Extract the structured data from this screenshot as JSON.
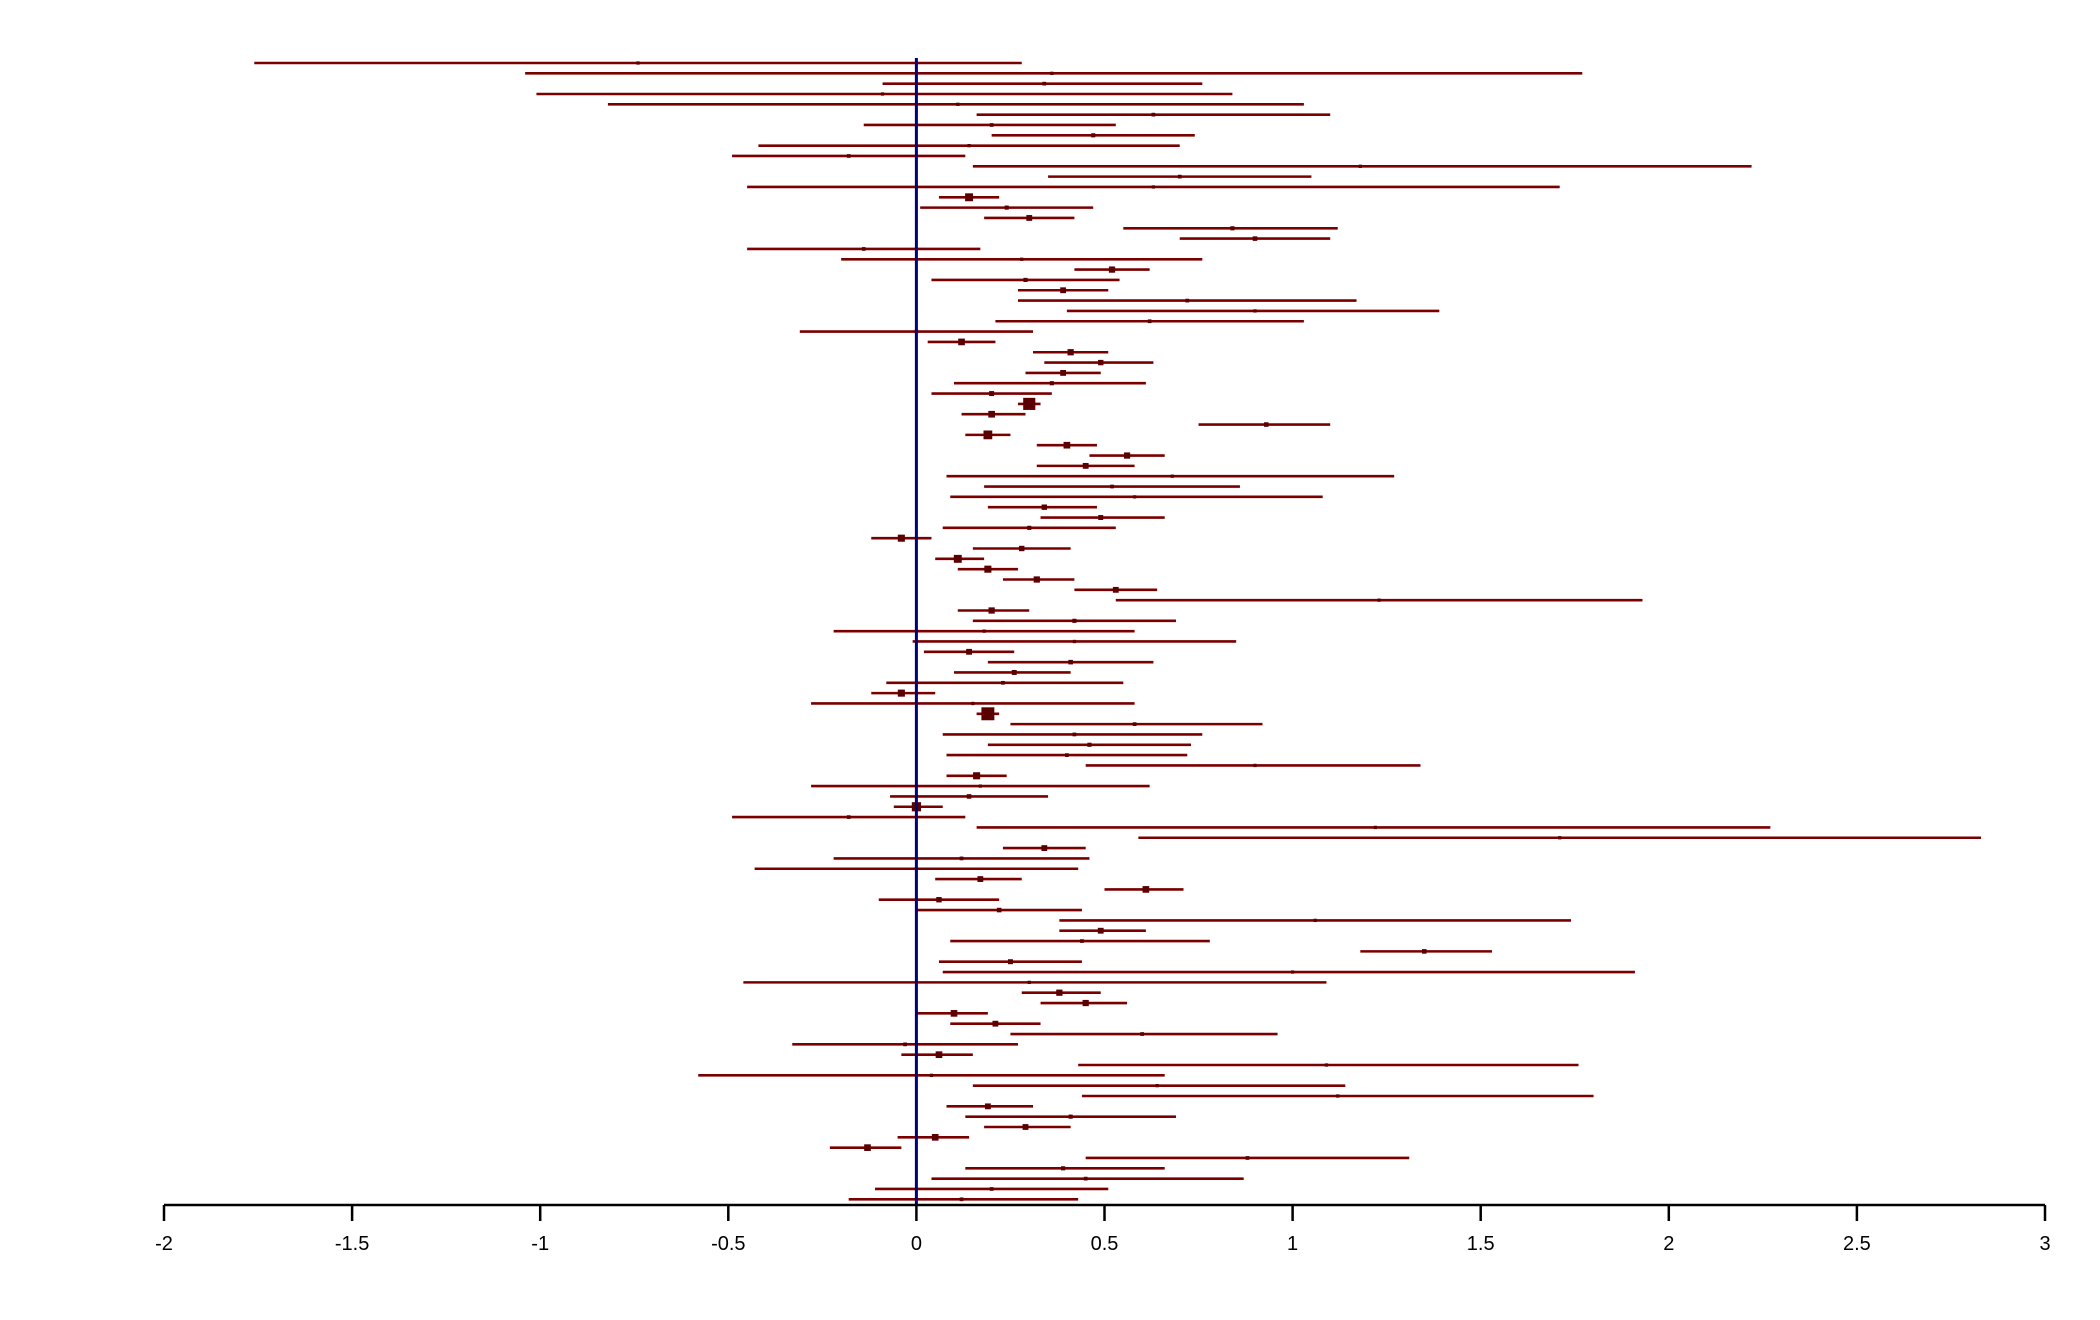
{
  "chart_data": {
    "type": "forest",
    "xlim": [
      -2,
      3
    ],
    "xticks": [
      -2,
      -1.5,
      -1,
      -0.5,
      0,
      0.5,
      1,
      1.5,
      2,
      2.5,
      3
    ],
    "xtick_labels": [
      "-2",
      "-1.5",
      "-1",
      "-0.5",
      "0",
      "0.5",
      "1",
      "1.5",
      "2",
      "2.5",
      "3"
    ],
    "reference_line": 0,
    "grid": false,
    "colors": {
      "interval": "#7a0000",
      "marker": "#5a0000",
      "reference": "#00007a",
      "axis": "#000000"
    },
    "rows": [
      {
        "est": -0.74,
        "lo": -1.76,
        "hi": 0.28,
        "w": 0.5
      },
      {
        "est": 0.36,
        "lo": -1.04,
        "hi": 1.77,
        "w": 0.5
      },
      {
        "est": 0.34,
        "lo": -0.09,
        "hi": 0.76,
        "w": 0.6
      },
      {
        "est": -0.09,
        "lo": -1.01,
        "hi": 0.84,
        "w": 0.5
      },
      {
        "est": 0.11,
        "lo": -0.82,
        "hi": 1.03,
        "w": 0.5
      },
      {
        "est": 0.63,
        "lo": 0.16,
        "hi": 1.1,
        "w": 0.6
      },
      {
        "est": 0.2,
        "lo": -0.14,
        "hi": 0.53,
        "w": 0.6
      },
      {
        "est": 0.47,
        "lo": 0.2,
        "hi": 0.74,
        "w": 0.7
      },
      {
        "est": 0.14,
        "lo": -0.42,
        "hi": 0.7,
        "w": 0.5
      },
      {
        "est": -0.18,
        "lo": -0.49,
        "hi": 0.13,
        "w": 0.6
      },
      {
        "est": 1.18,
        "lo": 0.15,
        "hi": 2.22,
        "w": 0.5
      },
      {
        "est": 0.7,
        "lo": 0.35,
        "hi": 1.05,
        "w": 0.6
      },
      {
        "est": 0.63,
        "lo": -0.45,
        "hi": 1.71,
        "w": 0.5
      },
      {
        "est": 0.14,
        "lo": 0.06,
        "hi": 0.22,
        "w": 1.6
      },
      {
        "est": 0.24,
        "lo": 0.01,
        "hi": 0.47,
        "w": 0.7
      },
      {
        "est": 0.3,
        "lo": 0.18,
        "hi": 0.42,
        "w": 1.1
      },
      {
        "est": 0.84,
        "lo": 0.55,
        "hi": 1.12,
        "w": 0.7
      },
      {
        "est": 0.9,
        "lo": 0.7,
        "hi": 1.1,
        "w": 0.8
      },
      {
        "est": -0.14,
        "lo": -0.45,
        "hi": 0.17,
        "w": 0.6
      },
      {
        "est": 0.28,
        "lo": -0.2,
        "hi": 0.76,
        "w": 0.5
      },
      {
        "est": 0.52,
        "lo": 0.42,
        "hi": 0.62,
        "w": 1.2
      },
      {
        "est": 0.29,
        "lo": 0.04,
        "hi": 0.54,
        "w": 0.7
      },
      {
        "est": 0.39,
        "lo": 0.27,
        "hi": 0.51,
        "w": 1.1
      },
      {
        "est": 0.72,
        "lo": 0.27,
        "hi": 1.17,
        "w": 0.6
      },
      {
        "est": 0.9,
        "lo": 0.4,
        "hi": 1.39,
        "w": 0.5
      },
      {
        "est": 0.62,
        "lo": 0.21,
        "hi": 1.03,
        "w": 0.6
      },
      {
        "est": 0.0,
        "lo": -0.31,
        "hi": 0.31,
        "w": 0.6
      },
      {
        "est": 0.12,
        "lo": 0.03,
        "hi": 0.21,
        "w": 1.3
      },
      {
        "est": 0.41,
        "lo": 0.31,
        "hi": 0.51,
        "w": 1.2
      },
      {
        "est": 0.49,
        "lo": 0.34,
        "hi": 0.63,
        "w": 1.0
      },
      {
        "est": 0.39,
        "lo": 0.29,
        "hi": 0.49,
        "w": 1.1
      },
      {
        "est": 0.36,
        "lo": 0.1,
        "hi": 0.61,
        "w": 0.7
      },
      {
        "est": 0.2,
        "lo": 0.04,
        "hi": 0.36,
        "w": 0.9
      },
      {
        "est": 0.3,
        "lo": 0.27,
        "hi": 0.33,
        "w": 2.6
      },
      {
        "est": 0.2,
        "lo": 0.12,
        "hi": 0.29,
        "w": 1.3
      },
      {
        "est": 0.93,
        "lo": 0.75,
        "hi": 1.1,
        "w": 0.8
      },
      {
        "est": 0.19,
        "lo": 0.13,
        "hi": 0.25,
        "w": 1.8
      },
      {
        "est": 0.4,
        "lo": 0.32,
        "hi": 0.48,
        "w": 1.3
      },
      {
        "est": 0.56,
        "lo": 0.46,
        "hi": 0.66,
        "w": 1.2
      },
      {
        "est": 0.45,
        "lo": 0.32,
        "hi": 0.58,
        "w": 1.1
      },
      {
        "est": 0.68,
        "lo": 0.08,
        "hi": 1.27,
        "w": 0.5
      },
      {
        "est": 0.52,
        "lo": 0.18,
        "hi": 0.86,
        "w": 0.6
      },
      {
        "est": 0.58,
        "lo": 0.09,
        "hi": 1.08,
        "w": 0.5
      },
      {
        "est": 0.34,
        "lo": 0.19,
        "hi": 0.48,
        "w": 1.0
      },
      {
        "est": 0.49,
        "lo": 0.33,
        "hi": 0.66,
        "w": 0.9
      },
      {
        "est": 0.3,
        "lo": 0.07,
        "hi": 0.53,
        "w": 0.7
      },
      {
        "est": -0.04,
        "lo": -0.12,
        "hi": 0.04,
        "w": 1.4
      },
      {
        "est": 0.28,
        "lo": 0.15,
        "hi": 0.41,
        "w": 1.0
      },
      {
        "est": 0.11,
        "lo": 0.05,
        "hi": 0.18,
        "w": 1.6
      },
      {
        "est": 0.19,
        "lo": 0.11,
        "hi": 0.27,
        "w": 1.4
      },
      {
        "est": 0.32,
        "lo": 0.23,
        "hi": 0.42,
        "w": 1.2
      },
      {
        "est": 0.53,
        "lo": 0.42,
        "hi": 0.64,
        "w": 1.1
      },
      {
        "est": 1.23,
        "lo": 0.53,
        "hi": 1.93,
        "w": 0.5
      },
      {
        "est": 0.2,
        "lo": 0.11,
        "hi": 0.3,
        "w": 1.2
      },
      {
        "est": 0.42,
        "lo": 0.15,
        "hi": 0.69,
        "w": 0.7
      },
      {
        "est": 0.18,
        "lo": -0.22,
        "hi": 0.58,
        "w": 0.5
      },
      {
        "est": 0.42,
        "lo": -0.01,
        "hi": 0.85,
        "w": 0.5
      },
      {
        "est": 0.14,
        "lo": 0.02,
        "hi": 0.26,
        "w": 1.1
      },
      {
        "est": 0.41,
        "lo": 0.19,
        "hi": 0.63,
        "w": 0.8
      },
      {
        "est": 0.26,
        "lo": 0.1,
        "hi": 0.41,
        "w": 0.9
      },
      {
        "est": 0.23,
        "lo": -0.08,
        "hi": 0.55,
        "w": 0.6
      },
      {
        "est": -0.04,
        "lo": -0.12,
        "hi": 0.05,
        "w": 1.4
      },
      {
        "est": 0.15,
        "lo": -0.28,
        "hi": 0.58,
        "w": 0.5
      },
      {
        "est": 0.19,
        "lo": 0.16,
        "hi": 0.22,
        "w": 2.8
      },
      {
        "est": 0.58,
        "lo": 0.25,
        "hi": 0.92,
        "w": 0.6
      },
      {
        "est": 0.42,
        "lo": 0.07,
        "hi": 0.76,
        "w": 0.6
      },
      {
        "est": 0.46,
        "lo": 0.19,
        "hi": 0.73,
        "w": 0.7
      },
      {
        "est": 0.4,
        "lo": 0.08,
        "hi": 0.72,
        "w": 0.6
      },
      {
        "est": 0.9,
        "lo": 0.45,
        "hi": 1.34,
        "w": 0.5
      },
      {
        "est": 0.16,
        "lo": 0.08,
        "hi": 0.24,
        "w": 1.4
      },
      {
        "est": 0.17,
        "lo": -0.28,
        "hi": 0.62,
        "w": 0.5
      },
      {
        "est": 0.14,
        "lo": -0.07,
        "hi": 0.35,
        "w": 0.8
      },
      {
        "est": 0.0,
        "lo": -0.06,
        "hi": 0.07,
        "w": 1.9
      },
      {
        "est": -0.18,
        "lo": -0.49,
        "hi": 0.13,
        "w": 0.6
      },
      {
        "est": 1.22,
        "lo": 0.16,
        "hi": 2.27,
        "w": 0.5
      },
      {
        "est": 1.71,
        "lo": 0.59,
        "hi": 2.83,
        "w": 0.5
      },
      {
        "est": 0.34,
        "lo": 0.23,
        "hi": 0.45,
        "w": 1.1
      },
      {
        "est": 0.12,
        "lo": -0.22,
        "hi": 0.46,
        "w": 0.6
      },
      {
        "est": 0.0,
        "lo": -0.43,
        "hi": 0.43,
        "w": 0.5
      },
      {
        "est": 0.17,
        "lo": 0.05,
        "hi": 0.28,
        "w": 1.1
      },
      {
        "est": 0.61,
        "lo": 0.5,
        "hi": 0.71,
        "w": 1.3
      },
      {
        "est": 0.06,
        "lo": -0.1,
        "hi": 0.22,
        "w": 1.0
      },
      {
        "est": 0.22,
        "lo": 0.0,
        "hi": 0.44,
        "w": 0.8
      },
      {
        "est": 1.06,
        "lo": 0.38,
        "hi": 1.74,
        "w": 0.5
      },
      {
        "est": 0.49,
        "lo": 0.38,
        "hi": 0.61,
        "w": 1.1
      },
      {
        "est": 0.44,
        "lo": 0.09,
        "hi": 0.78,
        "w": 0.6
      },
      {
        "est": 1.35,
        "lo": 1.18,
        "hi": 1.53,
        "w": 0.8
      },
      {
        "est": 0.25,
        "lo": 0.06,
        "hi": 0.44,
        "w": 0.9
      },
      {
        "est": 1.0,
        "lo": 0.07,
        "hi": 1.91,
        "w": 0.5
      },
      {
        "est": 0.3,
        "lo": -0.46,
        "hi": 1.09,
        "w": 0.5
      },
      {
        "est": 0.38,
        "lo": 0.28,
        "hi": 0.49,
        "w": 1.2
      },
      {
        "est": 0.45,
        "lo": 0.33,
        "hi": 0.56,
        "w": 1.2
      },
      {
        "est": 0.1,
        "lo": 0.0,
        "hi": 0.19,
        "w": 1.3
      },
      {
        "est": 0.21,
        "lo": 0.09,
        "hi": 0.33,
        "w": 1.1
      },
      {
        "est": 0.6,
        "lo": 0.25,
        "hi": 0.96,
        "w": 0.6
      },
      {
        "est": -0.03,
        "lo": -0.33,
        "hi": 0.27,
        "w": 0.6
      },
      {
        "est": 0.06,
        "lo": -0.04,
        "hi": 0.15,
        "w": 1.3
      },
      {
        "est": 1.09,
        "lo": 0.43,
        "hi": 1.76,
        "w": 0.5
      },
      {
        "est": 0.04,
        "lo": -0.58,
        "hi": 0.66,
        "w": 0.5
      },
      {
        "est": 0.64,
        "lo": 0.15,
        "hi": 1.14,
        "w": 0.5
      },
      {
        "est": 1.12,
        "lo": 0.44,
        "hi": 1.8,
        "w": 0.5
      },
      {
        "est": 0.19,
        "lo": 0.08,
        "hi": 0.31,
        "w": 1.1
      },
      {
        "est": 0.41,
        "lo": 0.13,
        "hi": 0.69,
        "w": 0.7
      },
      {
        "est": 0.29,
        "lo": 0.18,
        "hi": 0.41,
        "w": 1.1
      },
      {
        "est": 0.05,
        "lo": -0.05,
        "hi": 0.14,
        "w": 1.3
      },
      {
        "est": -0.13,
        "lo": -0.23,
        "hi": -0.04,
        "w": 1.3
      },
      {
        "est": 0.88,
        "lo": 0.45,
        "hi": 1.31,
        "w": 0.6
      },
      {
        "est": 0.39,
        "lo": 0.13,
        "hi": 0.66,
        "w": 0.7
      },
      {
        "est": 0.45,
        "lo": 0.04,
        "hi": 0.87,
        "w": 0.6
      },
      {
        "est": 0.2,
        "lo": -0.11,
        "hi": 0.51,
        "w": 0.6
      },
      {
        "est": 0.12,
        "lo": -0.18,
        "hi": 0.43,
        "w": 0.6
      }
    ]
  }
}
